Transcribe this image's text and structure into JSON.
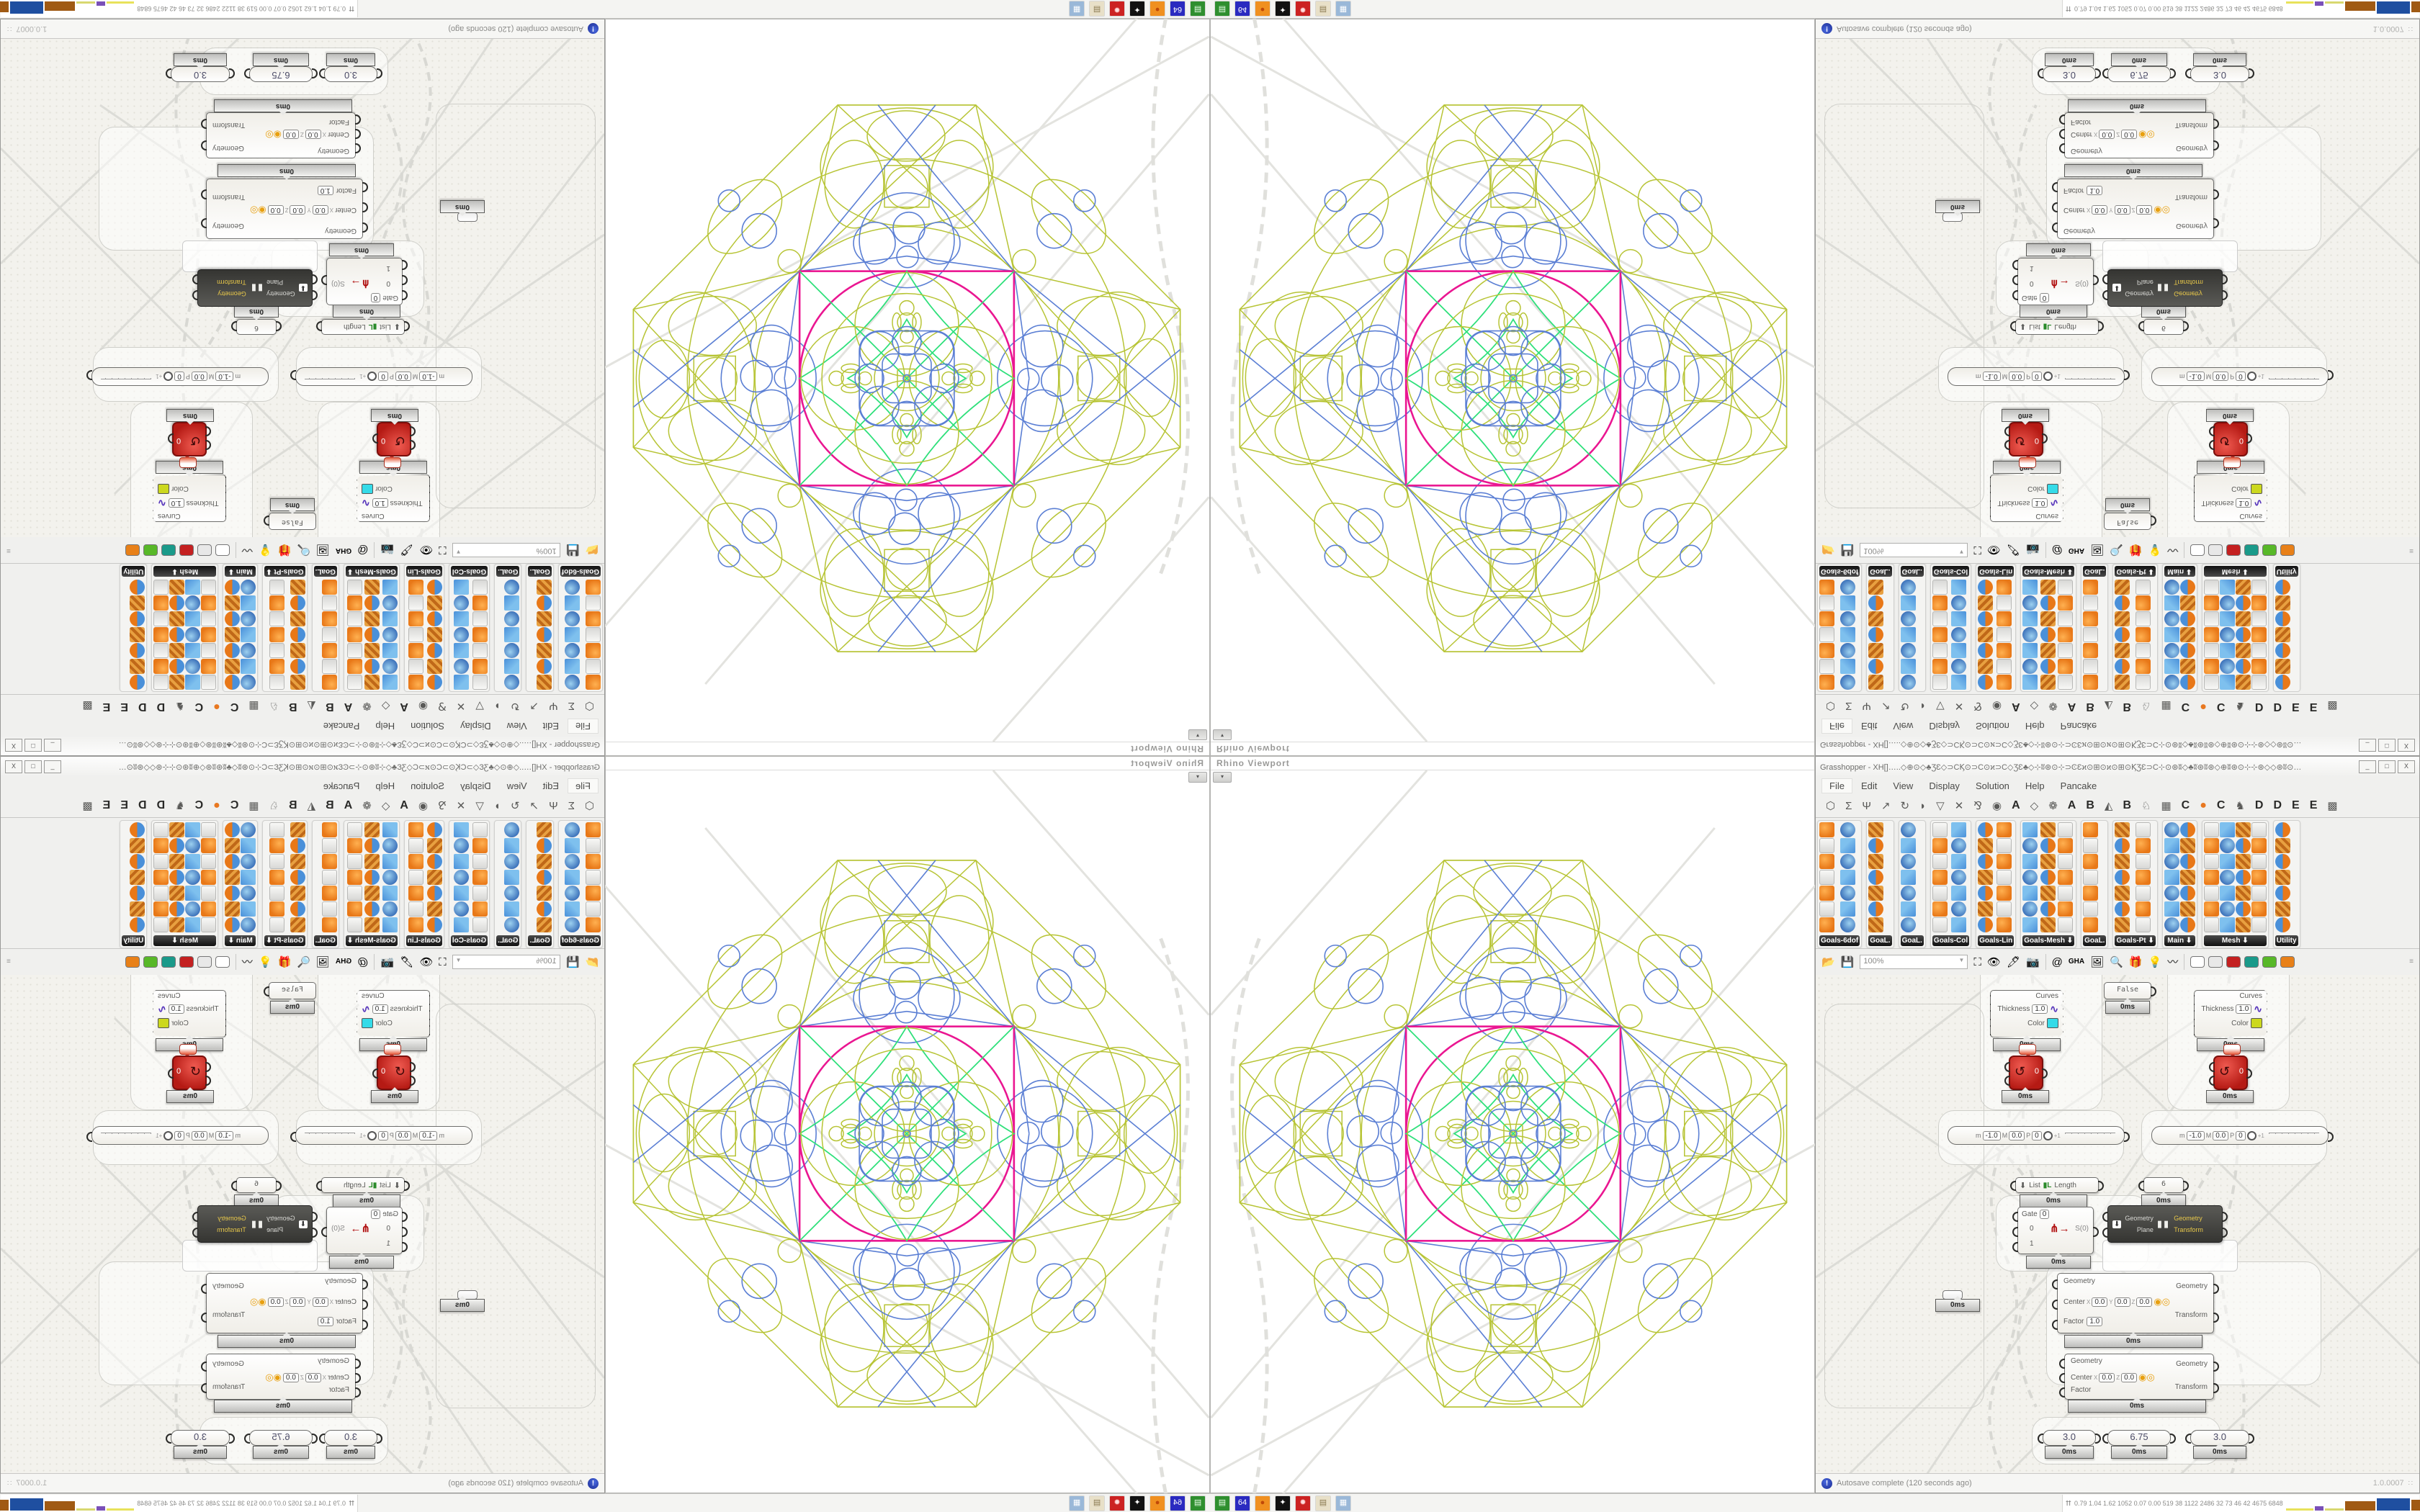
{
  "colors": {
    "olive": "#b7c435",
    "pblue": "#5b7fd4",
    "magenta": "#ea1691",
    "pgreen": "#2fe07b",
    "accent_red": "#b51a14",
    "taskbar_bg": "#f4f4f2"
  },
  "viewport": {
    "title": "Rhino Viewport",
    "dropdown_icon": "▾"
  },
  "gh": {
    "title": "Grasshopper - XH[]…..◇⊕⊙◇♣ƷƐ◇⊃ϹϏ⊙⊃Ϲ⊙ϰ⊃Ϲ◇ƷƐ♣◇⊹ʬ⊛⊙⊹⊃ϾƐϰ⊙⊞⊙ϰ⊙⊞⊙ϏƷƐ⊃Ϲ⊹⊙⊛ʬ◇♣ʬ⊛ʬ⊛◇⊕ʬ⊛⊙⊹⊹⊛◇◇⊛ʬ⊙…",
    "window_buttons": {
      "min": "_",
      "max": "□",
      "close": "X"
    },
    "menus": [
      "File",
      "Edit",
      "View",
      "Display",
      "Solution",
      "Help",
      "Pancake"
    ],
    "tabs": [
      {
        "g": "⬡",
        "b": 0
      },
      {
        "g": "Σ",
        "b": 0
      },
      {
        "g": "Ψ",
        "b": 0
      },
      {
        "g": "↗",
        "b": 0
      },
      {
        "g": "↻",
        "b": 0
      },
      {
        "g": "◗",
        "b": 0
      },
      {
        "g": "▽",
        "b": 0
      },
      {
        "g": "✕",
        "b": 0
      },
      {
        "g": "⅋",
        "b": 0
      },
      {
        "g": "◉",
        "b": 0
      },
      {
        "g": "A",
        "b": 1
      },
      {
        "g": "◇",
        "b": 0
      },
      {
        "g": "❁",
        "b": 0
      },
      {
        "g": "A",
        "b": 1
      },
      {
        "g": "B",
        "b": 1
      },
      {
        "g": "◭",
        "b": 0
      },
      {
        "g": "B",
        "b": 1
      },
      {
        "g": "♘",
        "b": 0
      },
      {
        "g": "▦",
        "b": 0
      },
      {
        "g": "C",
        "b": 1
      },
      {
        "g": "●",
        "b": 1,
        "c": "#e87820"
      },
      {
        "g": "C",
        "b": 1
      },
      {
        "g": "♞",
        "b": 0
      },
      {
        "g": "D",
        "b": 1
      },
      {
        "g": "D",
        "b": 1
      },
      {
        "g": "E",
        "b": 1
      },
      {
        "g": "E",
        "b": 1
      },
      {
        "g": "▩",
        "b": 0
      }
    ],
    "palette_groups": [
      {
        "label": "Goals-6dof",
        "cols": 2,
        "arrow": false
      },
      {
        "label": "GoaL.",
        "cols": 1,
        "arrow": false
      },
      {
        "label": "GoaL.",
        "cols": 1,
        "arrow": false
      },
      {
        "label": "Goals-Col",
        "cols": 2,
        "arrow": false
      },
      {
        "label": "Goals-Lin",
        "cols": 2,
        "arrow": false
      },
      {
        "label": "Goals-Mesh",
        "cols": 3,
        "arrow": true
      },
      {
        "label": "GoaL.",
        "cols": 1,
        "arrow": false
      },
      {
        "label": "Goals-Pt",
        "cols": 2,
        "arrow": true
      },
      {
        "label": "Main",
        "cols": 2,
        "arrow": true
      },
      {
        "label": "Mesh",
        "cols": 4,
        "arrow": true
      },
      {
        "label": "Utility",
        "cols": 1,
        "arrow": false
      }
    ],
    "toolbar": {
      "zoom": "100%",
      "cylinders": [
        "#ffffff",
        "#e8e8e8",
        "#c42020",
        "#1a9a8a",
        "#58b828",
        "#e88018"
      ]
    },
    "status": {
      "text": "Autosave complete (120 seconds ago)",
      "version": "1.0.0007"
    },
    "canvas": {
      "profiler": "0ms",
      "custom_previews": [
        {
          "l1": "Curves",
          "l2": "Thickness",
          "v2": "1.0",
          "l3": "Color",
          "swatch": "#35dbe8"
        },
        {
          "l1": "Curves",
          "l2": "Thickness",
          "v2": "1.0",
          "l3": "Color",
          "swatch": "#ccd81e"
        }
      ],
      "false_toggle": "False",
      "red_value": "0",
      "pill": {
        "m_label": "m",
        "m": "-1.0",
        "M_label": "M",
        "M": "0.0",
        "p_label": "P",
        "p": "0",
        "tick": "+1"
      },
      "list_length": {
        "in": "List",
        "out": "Length"
      },
      "panel_value": "6",
      "stream_filter": {
        "gate": "Gate",
        "gate_v": "0",
        "a": "0",
        "b": "1",
        "out": "S(0)"
      },
      "mirror": {
        "in1": "Geometry",
        "in2": "Plane",
        "out1": "Geometry",
        "out2": "Transform"
      },
      "scale": {
        "g": "Geometry",
        "c": "Center",
        "x": "0.0",
        "y": "0.0",
        "z": "0.0",
        "f": "Factor",
        "fv": "1.0",
        "out1": "Geometry",
        "out2": "Transform"
      },
      "sliders": [
        "3.0",
        "6.75",
        "3.0"
      ]
    }
  },
  "taskbar": {
    "icons": [
      {
        "name": "drive-app-icon",
        "g": "▤",
        "bg": "#2f8f2f",
        "fg": "#eaffea"
      },
      {
        "name": "floppy-64-icon",
        "g": "64",
        "bg": "#2a2ac0",
        "fg": "#ffffff"
      },
      {
        "name": "firefox-icon",
        "g": "●",
        "bg": "#f09020",
        "fg": "#c04808"
      },
      {
        "name": "cat-app-icon",
        "g": "✦",
        "bg": "#111111",
        "fg": "#ffffff"
      },
      {
        "name": "red-gear-icon",
        "g": "✹",
        "bg": "#cc2222",
        "fg": "#ffdddd"
      },
      {
        "name": "notepad-icon",
        "g": "▤",
        "bg": "#e8e0c8",
        "fg": "#8a7a50"
      },
      {
        "name": "calculator-icon",
        "g": "▦",
        "bg": "#9ab8d8",
        "fg": "#ffffff"
      }
    ],
    "monitor_arrow": "⮅",
    "monitor_numbers": "0.79 1.04 1.62 1052 0.07 0.00 519  38  1122 2486  32  73  46  42  4675 6848",
    "graph_blocks": [
      {
        "c": "#e8e25a",
        "w": 38,
        "h": 3
      },
      {
        "c": "#7a50b8",
        "w": 12,
        "h": 6
      },
      {
        "c": "#d8d870",
        "w": 26,
        "h": 3
      },
      {
        "c": "#a05a14",
        "w": 42,
        "h": 13
      },
      {
        "c": "#1f4fa0",
        "w": 46,
        "h": 17
      },
      {
        "c": "#a05a14",
        "w": 38,
        "h": 15
      },
      {
        "c": "#44bb44",
        "w": 24,
        "h": 3
      },
      {
        "c": "#991111",
        "w": 40,
        "h": 14
      }
    ]
  }
}
